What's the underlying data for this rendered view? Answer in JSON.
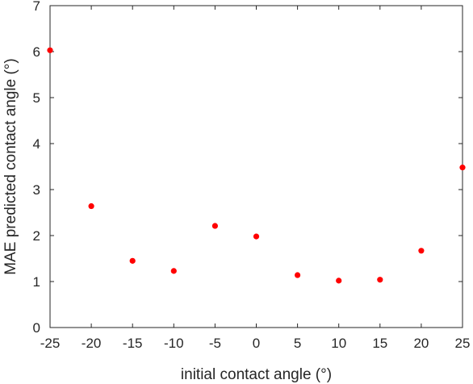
{
  "chart_data": {
    "type": "scatter",
    "title": "",
    "xlabel": "initial contact angle (°)",
    "ylabel": "MAE predicted contact angle (°)",
    "xlim": [
      -25,
      25
    ],
    "ylim": [
      0,
      7
    ],
    "xticks": [
      -25,
      -20,
      -15,
      -10,
      -5,
      0,
      5,
      10,
      15,
      20,
      25
    ],
    "yticks": [
      0,
      1,
      2,
      3,
      4,
      5,
      6,
      7
    ],
    "xtick_labels": [
      "-25",
      "-20",
      "-15",
      "-10",
      "-5",
      "0",
      "5",
      "10",
      "15",
      "20",
      "25"
    ],
    "ytick_labels": [
      "0",
      "1",
      "2",
      "3",
      "4",
      "5",
      "6",
      "7"
    ],
    "grid": false,
    "box": true,
    "marker_color": "#ff0000",
    "series": [
      {
        "x": [
          -25,
          -20,
          -15,
          -10,
          -5,
          0,
          5,
          10,
          15,
          20,
          25
        ],
        "y": [
          6.03,
          2.64,
          1.45,
          1.23,
          2.21,
          1.98,
          1.14,
          1.02,
          1.04,
          1.67,
          3.48
        ]
      }
    ]
  }
}
